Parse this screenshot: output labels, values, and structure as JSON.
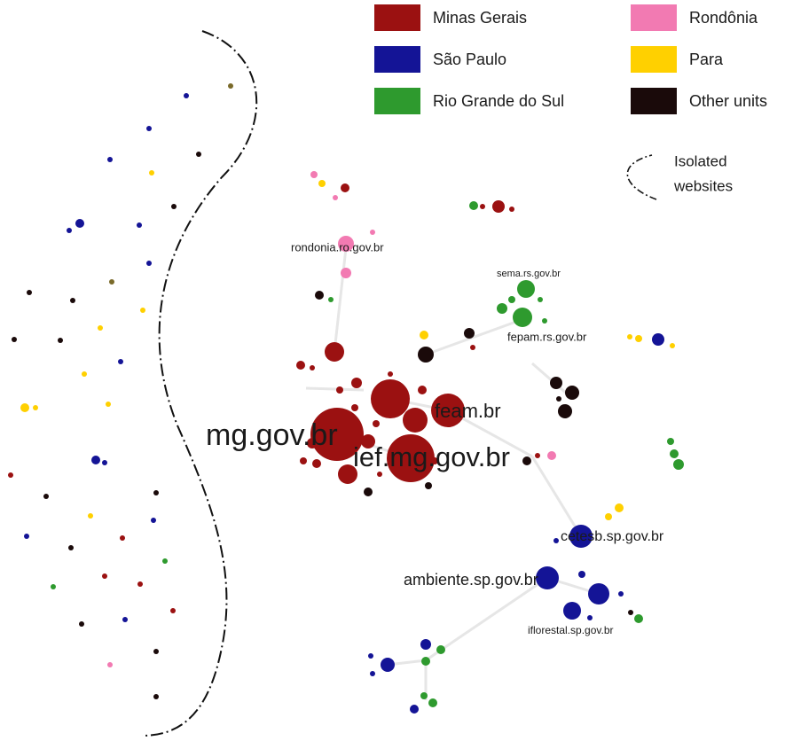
{
  "legend": [
    {
      "label": "Minas Gerais",
      "color": "#9b1111"
    },
    {
      "label": "São Paulo",
      "color": "#141496"
    },
    {
      "label": "Rio Grande do Sul",
      "color": "#2e9a2e"
    },
    {
      "label": "Rondônia",
      "color": "#f27ab2"
    },
    {
      "label": "Para",
      "color": "#ffd000"
    },
    {
      "label": "Other units",
      "color": "#1a0a0a"
    }
  ],
  "isolated_note": [
    "Isolated",
    "websites"
  ],
  "node_labels": [
    "rondonia.ro.gov.br",
    "sema.rs.gov.br",
    "fepam.rs.gov.br",
    "mg.gov.br",
    "feam.br",
    "ief.mg.gov.br",
    "cetesb.sp.gov.br",
    "ambiente.sp.gov.br",
    "iflorestal.sp.gov.br"
  ]
}
